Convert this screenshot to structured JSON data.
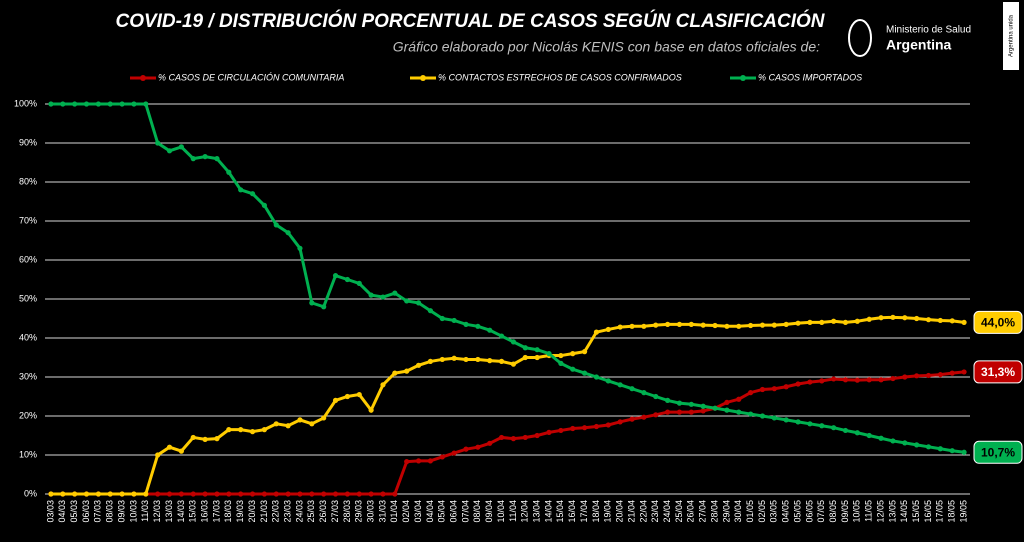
{
  "chart_data": {
    "type": "line",
    "title": "COVID-19  /  DISTRIBUCIÓN PORCENTUAL DE CASOS SEGÚN CLASIFICACIÓN",
    "subtitle": "Gráfico elaborado por Nicolás KENIS con base en datos oficiales de:",
    "logo": {
      "line1": "Ministerio de Salud",
      "line2": "Argentina",
      "side": "Argentina unida"
    },
    "categories": [
      "03/03",
      "04/03",
      "05/03",
      "06/03",
      "07/03",
      "08/03",
      "09/03",
      "10/03",
      "11/03",
      "12/03",
      "13/03",
      "14/03",
      "15/03",
      "16/03",
      "17/03",
      "18/03",
      "19/03",
      "20/03",
      "21/03",
      "22/03",
      "23/03",
      "24/03",
      "25/03",
      "26/03",
      "27/03",
      "28/03",
      "29/03",
      "30/03",
      "31/03",
      "01/04",
      "02/04",
      "03/04",
      "04/04",
      "05/04",
      "06/04",
      "07/04",
      "08/04",
      "09/04",
      "10/04",
      "11/04",
      "12/04",
      "13/04",
      "14/04",
      "15/04",
      "16/04",
      "17/04",
      "18/04",
      "19/04",
      "20/04",
      "21/04",
      "22/04",
      "23/04",
      "24/04",
      "25/04",
      "26/04",
      "27/04",
      "28/04",
      "29/04",
      "30/04",
      "01/05",
      "02/05",
      "03/05",
      "04/05",
      "05/05",
      "06/05",
      "07/05",
      "08/05",
      "09/05",
      "10/05",
      "11/05",
      "12/05",
      "13/05",
      "14/05",
      "15/05",
      "16/05",
      "17/05",
      "18/05",
      "19/05"
    ],
    "series": [
      {
        "name": "% CASOS DE CIRCULACIÓN COMUNITARIA",
        "color": "#c00000",
        "values": [
          0,
          0,
          0,
          0,
          0,
          0,
          0,
          0,
          0,
          0,
          0,
          0,
          0,
          0,
          0,
          0,
          0,
          0,
          0,
          0,
          0,
          0,
          0,
          0,
          0,
          0,
          0,
          0,
          0,
          0,
          8.3,
          8.5,
          8.5,
          9.5,
          10.5,
          11.5,
          12,
          13,
          14.5,
          14.2,
          14.5,
          15,
          15.8,
          16.3,
          16.8,
          17,
          17.3,
          17.7,
          18.5,
          19.2,
          19.7,
          20.3,
          21,
          21,
          21,
          21.3,
          22,
          23.5,
          24.3,
          26,
          26.8,
          27,
          27.5,
          28.2,
          28.7,
          29,
          29.5,
          29.3,
          29.2,
          29.3,
          29.3,
          29.6,
          30,
          30.3,
          30.4,
          30.6,
          31,
          31.3
        ],
        "value_labels": [
          null,
          null,
          null,
          null,
          null,
          null,
          null,
          null,
          null,
          null,
          null,
          null,
          null,
          null,
          null,
          null,
          null,
          null,
          null,
          null,
          null,
          null,
          null,
          null,
          null,
          null,
          null,
          null,
          null,
          null,
          null,
          null,
          null,
          null,
          null,
          null,
          null,
          null,
          null,
          null,
          null,
          null,
          null,
          null,
          null,
          null,
          null,
          null,
          null,
          null,
          null,
          null,
          null,
          null,
          null,
          null,
          null,
          null,
          null,
          null,
          null,
          null,
          null,
          null,
          null,
          null,
          null,
          null,
          null,
          null,
          null,
          null,
          null,
          null,
          null,
          null,
          null,
          "31,3%"
        ]
      },
      {
        "name": "% CONTACTOS ESTRECHOS DE CASOS CONFIRMADOS",
        "color": "#ffcc00",
        "values": [
          0,
          0,
          0,
          0,
          0,
          0,
          0,
          0,
          0,
          10,
          12,
          11,
          14.5,
          14,
          14.2,
          16.5,
          16.5,
          16,
          16.5,
          18,
          17.5,
          19,
          18,
          19.5,
          24,
          25,
          25.5,
          21.5,
          28,
          31,
          31.5,
          33,
          34,
          34.5,
          34.8,
          34.5,
          34.5,
          34.2,
          34,
          33.3,
          35,
          35,
          35.5,
          35.5,
          36,
          36.5,
          41.5,
          42.2,
          42.8,
          43,
          43,
          43.3,
          43.5,
          43.5,
          43.5,
          43.3,
          43.2,
          43,
          43,
          43.2,
          43.3,
          43.3,
          43.5,
          43.8,
          44,
          44,
          44.3,
          44,
          44.3,
          44.8,
          45.2,
          45.3,
          45.2,
          45,
          44.7,
          44.5,
          44.4,
          44.0
        ],
        "value_labels": [
          null,
          null,
          null,
          null,
          null,
          null,
          null,
          null,
          null,
          null,
          null,
          null,
          null,
          null,
          null,
          null,
          null,
          null,
          null,
          null,
          null,
          null,
          null,
          null,
          null,
          null,
          null,
          null,
          null,
          null,
          null,
          null,
          null,
          null,
          null,
          null,
          null,
          null,
          null,
          null,
          null,
          null,
          null,
          null,
          null,
          null,
          null,
          null,
          null,
          null,
          null,
          null,
          null,
          null,
          null,
          null,
          null,
          null,
          null,
          null,
          null,
          null,
          null,
          null,
          null,
          null,
          null,
          null,
          null,
          null,
          null,
          null,
          null,
          null,
          null,
          null,
          null,
          "44,0%"
        ]
      },
      {
        "name": "% CASOS IMPORTADOS",
        "color": "#00b050",
        "values": [
          100,
          100,
          100,
          100,
          100,
          100,
          100,
          100,
          100,
          90,
          88,
          89,
          86,
          86.5,
          86,
          82.5,
          78,
          77,
          74,
          69,
          67,
          63,
          49,
          48,
          56,
          55,
          54,
          51,
          50.5,
          51.5,
          49.5,
          49,
          47,
          45,
          44.5,
          43.5,
          43,
          42,
          40.5,
          39,
          37.5,
          37,
          36,
          33.5,
          32,
          31,
          30,
          29,
          28,
          27,
          26,
          25,
          24,
          23.3,
          23,
          22.5,
          22,
          21.5,
          21,
          20.5,
          20,
          19.5,
          19,
          18.5,
          18,
          17.5,
          17,
          16.3,
          15.7,
          15,
          14.3,
          13.6,
          13.1,
          12.6,
          12.1,
          11.6,
          11.1,
          10.7
        ],
        "value_labels": [
          null,
          null,
          null,
          null,
          null,
          null,
          null,
          null,
          null,
          null,
          null,
          null,
          null,
          null,
          null,
          null,
          null,
          null,
          null,
          null,
          null,
          null,
          null,
          null,
          null,
          null,
          null,
          null,
          null,
          null,
          null,
          null,
          null,
          null,
          null,
          null,
          null,
          null,
          null,
          null,
          null,
          null,
          null,
          null,
          null,
          null,
          null,
          null,
          null,
          null,
          null,
          null,
          null,
          null,
          null,
          null,
          null,
          null,
          null,
          null,
          null,
          null,
          null,
          null,
          null,
          null,
          null,
          null,
          null,
          null,
          null,
          null,
          null,
          null,
          null,
          null,
          null,
          "10,7%"
        ]
      }
    ],
    "ylim": [
      0,
      100
    ],
    "yticks": [
      {
        "value": 0,
        "label": "0%"
      },
      {
        "value": 10,
        "label": "10%"
      },
      {
        "value": 20,
        "label": "20%"
      },
      {
        "value": 30,
        "label": "30%"
      },
      {
        "value": 40,
        "label": "40%"
      },
      {
        "value": 50,
        "label": "50%"
      },
      {
        "value": 60,
        "label": "60%"
      },
      {
        "value": 70,
        "label": "70%"
      },
      {
        "value": 80,
        "label": "80%"
      },
      {
        "value": 90,
        "label": "90%"
      },
      {
        "value": 100,
        "label": "100%"
      }
    ],
    "grid": true,
    "legend": "top"
  }
}
